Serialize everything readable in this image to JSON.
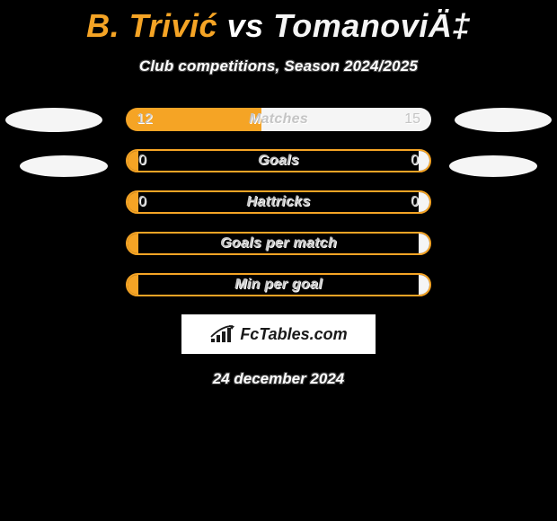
{
  "header": {
    "player1": "B. Trivić",
    "vs": "vs",
    "player2": "TomanoviÄ‡",
    "subtitle": "Club competitions, Season 2024/2025"
  },
  "colors": {
    "left_bar": "#f5a425",
    "right_bar": "#f5f5f5",
    "left_val_text": "#c8c8c8",
    "right_val_text": "#c8c8c8",
    "label_text": "#c8c8c8",
    "title_p1": "#f5a425",
    "title_vs": "#ffffff",
    "title_p2": "#f5f5f5",
    "border": "#f5a425"
  },
  "stats": [
    {
      "label": "Matches",
      "left_val": "12",
      "right_val": "15",
      "left_pct": 0.444,
      "right_pct": 0.556,
      "border": false
    },
    {
      "label": "Goals",
      "left_val": "0",
      "right_val": "0",
      "left_pct": 0.035,
      "right_pct": 0.035,
      "border": true
    },
    {
      "label": "Hattricks",
      "left_val": "0",
      "right_val": "0",
      "left_pct": 0.035,
      "right_pct": 0.035,
      "border": true
    },
    {
      "label": "Goals per match",
      "left_val": "",
      "right_val": "",
      "left_pct": 0.0,
      "right_pct": 0.0,
      "border": true
    },
    {
      "label": "Min per goal",
      "left_val": "",
      "right_val": "",
      "left_pct": 0.0,
      "right_pct": 0.0,
      "border": true
    }
  ],
  "footer": {
    "logo_text": "FcTables.com",
    "date": "24 december 2024"
  }
}
